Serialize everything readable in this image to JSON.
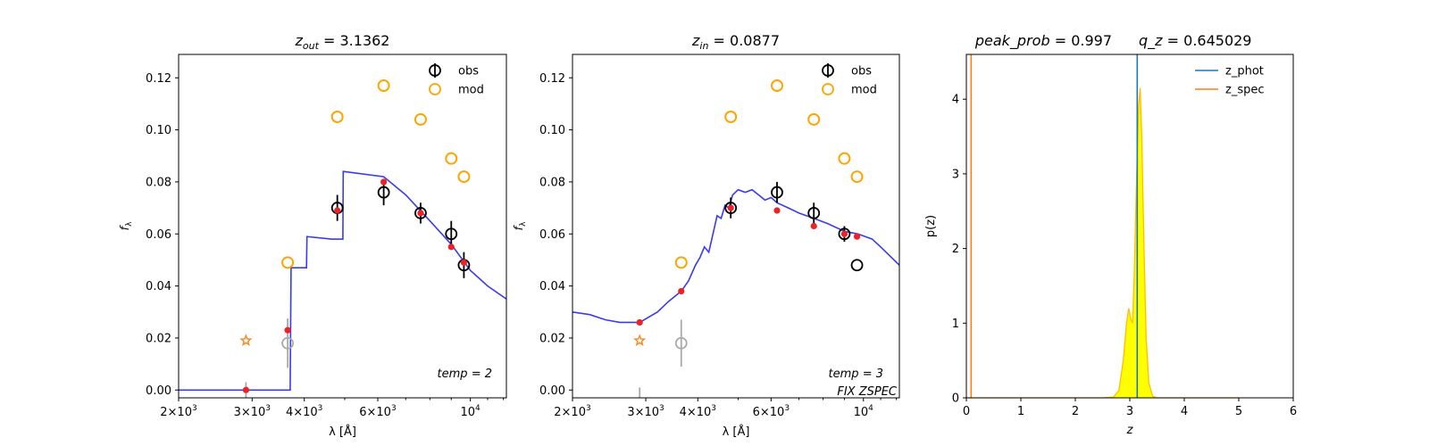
{
  "chart_data": [
    {
      "type": "scatter",
      "panel": "sed_out",
      "title": {
        "main": "z",
        "sub": "out",
        "rest": " = 3.1362"
      },
      "xlabel": "λ [Å]",
      "ylabel": "f_λ",
      "xscale": "log",
      "xlim": [
        2000,
        12200
      ],
      "ylim": [
        -0.003,
        0.129
      ],
      "xticks": [
        {
          "v": 2000,
          "mant": "2",
          "exp": "3"
        },
        {
          "v": 3000,
          "mant": "3",
          "exp": "3"
        },
        {
          "v": 4000,
          "mant": "4",
          "exp": "3"
        },
        {
          "v": 6000,
          "mant": "6",
          "exp": "3"
        },
        {
          "v": 10000,
          "mant": "10",
          "exp": "4"
        }
      ],
      "yticks": [
        "0.00",
        "0.02",
        "0.04",
        "0.06",
        "0.08",
        "0.10",
        "0.12"
      ],
      "legend": [
        "obs",
        "mod"
      ],
      "legend_loc": "top-right",
      "annotations": [
        "temp = 2"
      ],
      "colors": {
        "obs": "#000000",
        "mod": "#ffa500",
        "model_line": "#3a3af0",
        "model_pts": "#ee2222",
        "upper": "#aaaaaa",
        "star": "#f28e2b"
      },
      "obs": [
        {
          "x": 4800,
          "y": 0.07,
          "err": 0.005
        },
        {
          "x": 6200,
          "y": 0.076,
          "err": 0.005
        },
        {
          "x": 7600,
          "y": 0.068,
          "err": 0.004
        },
        {
          "x": 9000,
          "y": 0.06,
          "err": 0.005
        },
        {
          "x": 9650,
          "y": 0.048,
          "err": 0.005
        }
      ],
      "obs_faint": [
        {
          "x": 2900,
          "y": 0.0,
          "err": 0.003,
          "nomarker": true
        },
        {
          "x": 3650,
          "y": 0.018,
          "err": 0.0095
        }
      ],
      "mod": [
        {
          "x": 3650,
          "y": 0.049
        },
        {
          "x": 4800,
          "y": 0.105
        },
        {
          "x": 6200,
          "y": 0.117
        },
        {
          "x": 7600,
          "y": 0.104
        },
        {
          "x": 9000,
          "y": 0.089
        },
        {
          "x": 9650,
          "y": 0.082
        }
      ],
      "stars": [
        {
          "x": 2900,
          "y": 0.019
        }
      ],
      "model_pts": [
        {
          "x": 2900,
          "y": 0.0
        },
        {
          "x": 3650,
          "y": 0.023
        },
        {
          "x": 4800,
          "y": 0.069
        },
        {
          "x": 6200,
          "y": 0.08
        },
        {
          "x": 7600,
          "y": 0.068
        },
        {
          "x": 9000,
          "y": 0.055
        },
        {
          "x": 9650,
          "y": 0.049
        }
      ],
      "model_line": [
        [
          2000,
          0.0
        ],
        [
          3700,
          0.0
        ],
        [
          3720,
          0.047
        ],
        [
          4050,
          0.047
        ],
        [
          4060,
          0.059
        ],
        [
          4650,
          0.058
        ],
        [
          4660,
          0.058
        ],
        [
          4950,
          0.058
        ],
        [
          4960,
          0.084
        ],
        [
          6200,
          0.082
        ],
        [
          7000,
          0.075
        ],
        [
          8000,
          0.065
        ],
        [
          9000,
          0.056
        ],
        [
          10000,
          0.046
        ],
        [
          11000,
          0.04
        ],
        [
          12200,
          0.035
        ]
      ]
    },
    {
      "type": "scatter",
      "panel": "sed_in",
      "title": {
        "main": "z",
        "sub": "in",
        "rest": " = 0.0877"
      },
      "xlabel": "λ [Å]",
      "ylabel": "f_λ",
      "xscale": "log",
      "xlim": [
        2000,
        12200
      ],
      "ylim": [
        -0.003,
        0.129
      ],
      "xticks": [
        {
          "v": 2000,
          "mant": "2",
          "exp": "3"
        },
        {
          "v": 3000,
          "mant": "3",
          "exp": "3"
        },
        {
          "v": 4000,
          "mant": "4",
          "exp": "3"
        },
        {
          "v": 6000,
          "mant": "6",
          "exp": "3"
        },
        {
          "v": 10000,
          "mant": "10",
          "exp": "4"
        }
      ],
      "yticks": [
        "0.00",
        "0.02",
        "0.04",
        "0.06",
        "0.08",
        "0.10",
        "0.12"
      ],
      "legend": [
        "obs",
        "mod"
      ],
      "legend_loc": "top-right",
      "annotations": [
        "temp = 3",
        "FIX ZSPEC"
      ],
      "colors": {
        "obs": "#000000",
        "mod": "#ffa500",
        "model_line": "#3a3af0",
        "model_pts": "#ee2222",
        "upper": "#aaaaaa",
        "star": "#f28e2b"
      },
      "obs": [
        {
          "x": 4800,
          "y": 0.07,
          "err": 0.004
        },
        {
          "x": 6200,
          "y": 0.076,
          "err": 0.004
        },
        {
          "x": 7600,
          "y": 0.068,
          "err": 0.004
        },
        {
          "x": 9000,
          "y": 0.06,
          "err": 0.003
        },
        {
          "x": 9650,
          "y": 0.048,
          "err": 0.0
        }
      ],
      "obs_faint": [
        {
          "x": 2900,
          "y": -0.002,
          "err": 0.003,
          "nomarker": true
        },
        {
          "x": 3650,
          "y": 0.018,
          "err": 0.009
        }
      ],
      "mod": [
        {
          "x": 3650,
          "y": 0.049
        },
        {
          "x": 4800,
          "y": 0.105
        },
        {
          "x": 6200,
          "y": 0.117
        },
        {
          "x": 7600,
          "y": 0.104
        },
        {
          "x": 9000,
          "y": 0.089
        },
        {
          "x": 9650,
          "y": 0.082
        }
      ],
      "stars": [
        {
          "x": 2900,
          "y": 0.019
        }
      ],
      "model_pts": [
        {
          "x": 2900,
          "y": 0.026
        },
        {
          "x": 3650,
          "y": 0.038
        },
        {
          "x": 4800,
          "y": 0.07
        },
        {
          "x": 6200,
          "y": 0.069
        },
        {
          "x": 7600,
          "y": 0.063
        },
        {
          "x": 9000,
          "y": 0.06
        },
        {
          "x": 9650,
          "y": 0.059
        }
      ],
      "model_line": [
        [
          2000,
          0.03
        ],
        [
          2200,
          0.029
        ],
        [
          2400,
          0.027
        ],
        [
          2600,
          0.026
        ],
        [
          2900,
          0.026
        ],
        [
          3200,
          0.03
        ],
        [
          3400,
          0.034
        ],
        [
          3650,
          0.038
        ],
        [
          3800,
          0.042
        ],
        [
          3950,
          0.048
        ],
        [
          4050,
          0.051
        ],
        [
          4150,
          0.055
        ],
        [
          4250,
          0.053
        ],
        [
          4350,
          0.06
        ],
        [
          4450,
          0.067
        ],
        [
          4550,
          0.066
        ],
        [
          4650,
          0.071
        ],
        [
          4750,
          0.07
        ],
        [
          4850,
          0.075
        ],
        [
          5000,
          0.077
        ],
        [
          5200,
          0.076
        ],
        [
          5400,
          0.077
        ],
        [
          5600,
          0.075
        ],
        [
          5800,
          0.073
        ],
        [
          6000,
          0.074
        ],
        [
          6200,
          0.072
        ],
        [
          6600,
          0.07
        ],
        [
          7000,
          0.068
        ],
        [
          7600,
          0.066
        ],
        [
          8200,
          0.064
        ],
        [
          9000,
          0.061
        ],
        [
          9700,
          0.06
        ],
        [
          10500,
          0.058
        ],
        [
          11000,
          0.055
        ],
        [
          11500,
          0.052
        ],
        [
          12200,
          0.048
        ]
      ]
    },
    {
      "type": "area",
      "panel": "pz",
      "title_left": "peak_prob = 0.997",
      "title_right": "q_z = 0.645029",
      "xlabel": "z",
      "ylabel": "p(z)",
      "xlim": [
        0,
        6
      ],
      "ylim": [
        0,
        4.6
      ],
      "xticks": [
        "0",
        "1",
        "2",
        "3",
        "4",
        "5",
        "6"
      ],
      "yticks": [
        "0",
        "1",
        "2",
        "3",
        "4"
      ],
      "legend": [
        "z_phot",
        "z_spec"
      ],
      "legend_loc": "top-right",
      "z_phot": 3.1362,
      "z_spec": 0.0877,
      "colors": {
        "z_phot": "#1f77b4",
        "z_spec": "#ff7f0e",
        "fill": "#ffff00",
        "curve": "#ffbf00"
      },
      "pz": [
        [
          0.0,
          0.0
        ],
        [
          2.5,
          0.0
        ],
        [
          2.7,
          0.01
        ],
        [
          2.8,
          0.1
        ],
        [
          2.88,
          0.5
        ],
        [
          2.94,
          1.0
        ],
        [
          2.98,
          1.2
        ],
        [
          3.02,
          1.05
        ],
        [
          3.05,
          1.0
        ],
        [
          3.08,
          1.6
        ],
        [
          3.12,
          2.8
        ],
        [
          3.16,
          3.9
        ],
        [
          3.19,
          4.15
        ],
        [
          3.22,
          3.5
        ],
        [
          3.26,
          2.0
        ],
        [
          3.3,
          0.8
        ],
        [
          3.35,
          0.2
        ],
        [
          3.42,
          0.02
        ],
        [
          3.5,
          0.0
        ],
        [
          5.0,
          0.0
        ]
      ]
    }
  ]
}
